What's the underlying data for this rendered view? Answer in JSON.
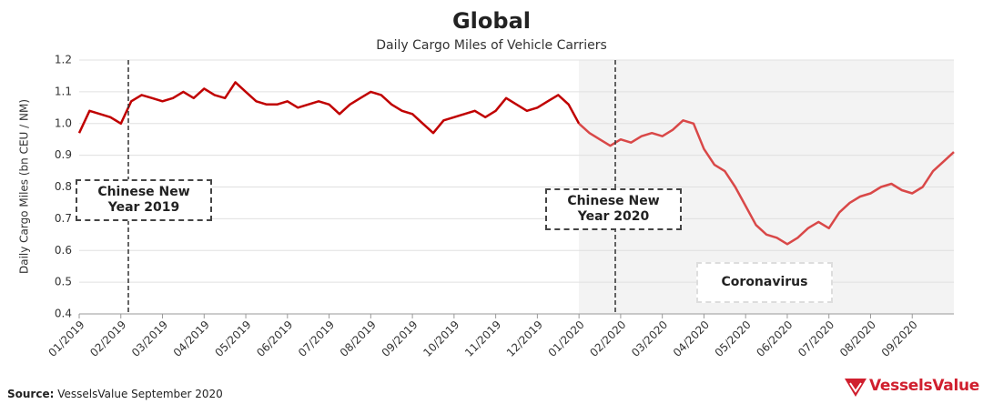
{
  "chart_data": {
    "type": "line",
    "title": "Global",
    "subtitle": "Daily Cargo Miles of Vehicle Carriers",
    "y_label": "Daily Cargo Miles (bn CEU / NM)",
    "categories": [
      "01/2019",
      null,
      null,
      null,
      "02/2019",
      null,
      null,
      null,
      "03/2019",
      null,
      null,
      null,
      "04/2019",
      null,
      null,
      null,
      "05/2019",
      null,
      null,
      null,
      "06/2019",
      null,
      null,
      null,
      "07/2019",
      null,
      null,
      null,
      "08/2019",
      null,
      null,
      null,
      "09/2019",
      null,
      null,
      null,
      "10/2019",
      null,
      null,
      null,
      "11/2019",
      null,
      null,
      null,
      "12/2019",
      null,
      null,
      null,
      "01/2020",
      null,
      null,
      null,
      "02/2020",
      null,
      null,
      null,
      "03/2020",
      null,
      null,
      null,
      "04/2020",
      null,
      null,
      null,
      "05/2020",
      null,
      null,
      null,
      "06/2020",
      null,
      null,
      null,
      "07/2020",
      null,
      null,
      null,
      "08/2020",
      null,
      null,
      null,
      "09/2020",
      null,
      null,
      null,
      null
    ],
    "series": [
      {
        "color": "#c00000",
        "values": [
          0.97,
          1.04,
          1.03,
          1.02,
          1.0,
          1.07,
          1.09,
          1.08,
          1.07,
          1.08,
          1.1,
          1.08,
          1.11,
          1.09,
          1.08,
          1.13,
          1.1,
          1.07,
          1.06,
          1.06,
          1.07,
          1.05,
          1.06,
          1.07,
          1.06,
          1.03,
          1.06,
          1.08,
          1.1,
          1.09,
          1.06,
          1.04,
          1.03,
          1.0,
          0.97,
          1.01,
          1.02,
          1.03,
          1.04,
          1.02,
          1.04,
          1.08,
          1.06,
          1.04,
          1.05,
          1.07,
          1.09,
          1.06,
          1.0,
          null,
          null,
          null,
          null,
          null,
          null,
          null,
          null,
          null,
          null,
          null,
          null,
          null,
          null,
          null,
          null,
          null,
          null,
          null,
          null,
          null,
          null,
          null,
          null,
          null,
          null,
          null,
          null,
          null,
          null,
          null,
          null,
          null,
          null,
          null,
          null
        ]
      },
      {
        "color": "#d94848",
        "values": [
          null,
          null,
          null,
          null,
          null,
          null,
          null,
          null,
          null,
          null,
          null,
          null,
          null,
          null,
          null,
          null,
          null,
          null,
          null,
          null,
          null,
          null,
          null,
          null,
          null,
          null,
          null,
          null,
          null,
          null,
          null,
          null,
          null,
          null,
          null,
          null,
          null,
          null,
          null,
          null,
          null,
          null,
          null,
          null,
          null,
          null,
          null,
          null,
          1.0,
          0.97,
          0.95,
          0.93,
          0.95,
          0.94,
          0.96,
          0.97,
          0.96,
          0.98,
          1.01,
          1.0,
          0.92,
          0.87,
          0.85,
          0.8,
          0.74,
          0.68,
          0.65,
          0.64,
          0.62,
          0.64,
          0.67,
          0.69,
          0.67,
          0.72,
          0.75,
          0.77,
          0.78,
          0.8,
          0.81,
          0.79,
          0.78,
          0.8,
          0.85,
          0.88,
          0.91
        ]
      }
    ],
    "ylim": [
      0.4,
      1.2
    ],
    "yticks": [
      0.4,
      0.5,
      0.6,
      0.7,
      0.8,
      0.9,
      {
        "value": 1,
        "label": "1.0"
      },
      1.1,
      1.2
    ],
    "grid": true,
    "annotations": [
      "Chinese New Year 2019",
      "Chinese New Year 2020",
      "Coronavirus"
    ],
    "source_label": "Source:",
    "source": "VesselsValue September 2020",
    "logo": "VesselsValue"
  }
}
